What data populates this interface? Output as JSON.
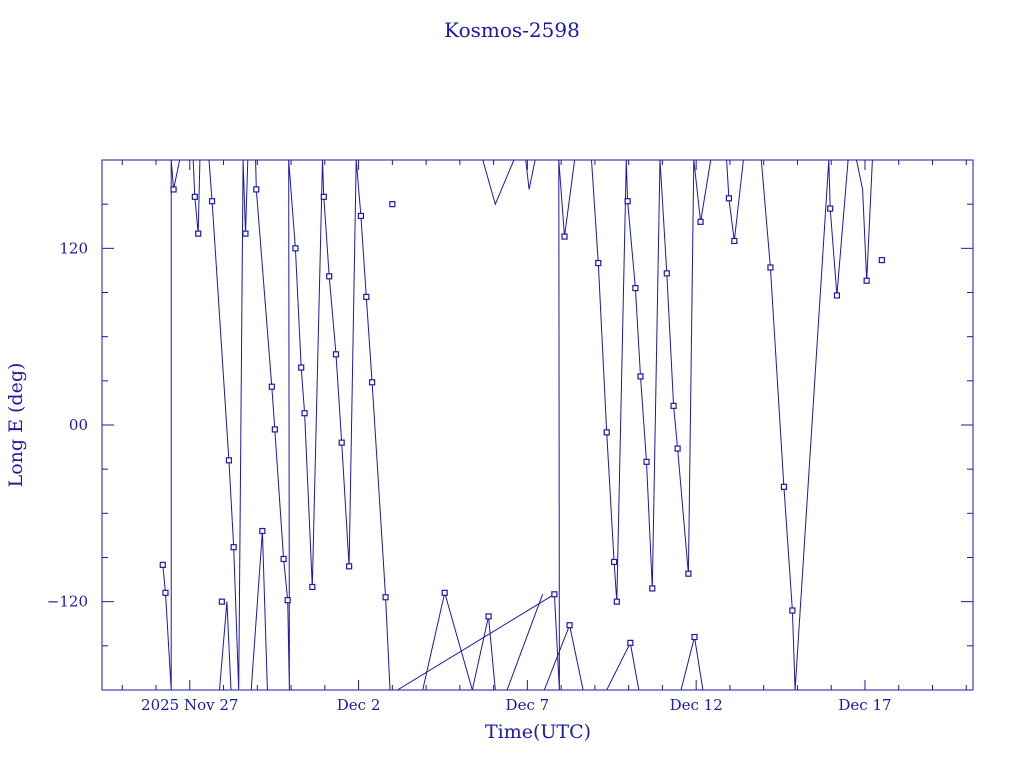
{
  "chart_data": {
    "type": "line",
    "title": "Kosmos-2598",
    "xlabel": "Time(UTC)",
    "ylabel": "Long E (deg)",
    "x_ticks": [
      "2025 Nov 27",
      "Dec  2",
      "Dec  7",
      "Dec 12",
      "Dec 17"
    ],
    "y_ticks": [
      "120",
      "00",
      "−120"
    ],
    "xlim_days_after_nov27": [
      -2.6,
      23.2
    ],
    "ylim": [
      -180,
      180
    ],
    "line_color": "#1a1aa6",
    "series": [
      {
        "points": [
          [
            -0.8,
            -95
          ],
          [
            -0.72,
            -114
          ],
          [
            -0.55,
            -180
          ],
          [
            -0.55,
            180
          ],
          [
            -0.48,
            160
          ],
          [
            -0.3,
            180
          ],
          [
            0.1,
            180
          ],
          [
            0.15,
            155
          ],
          [
            0.25,
            130
          ],
          [
            0.3,
            180
          ],
          [
            0.57,
            180
          ],
          [
            0.66,
            152
          ],
          [
            1.16,
            -24
          ],
          [
            1.3,
            -83
          ],
          [
            1.45,
            -180
          ],
          [
            1.58,
            180
          ],
          [
            1.65,
            130
          ],
          [
            1.72,
            180
          ],
          [
            1.95,
            180
          ],
          [
            1.97,
            160
          ],
          [
            2.43,
            26
          ],
          [
            2.52,
            -3
          ],
          [
            2.78,
            -91
          ],
          [
            2.9,
            -119
          ],
          [
            2.95,
            -180
          ],
          [
            2.93,
            180
          ],
          [
            3.13,
            120
          ],
          [
            3.3,
            39
          ],
          [
            3.4,
            8
          ],
          [
            3.63,
            -110
          ],
          [
            3.93,
            180
          ],
          [
            3.97,
            155
          ],
          [
            4.13,
            101
          ],
          [
            4.33,
            48
          ],
          [
            4.5,
            -12
          ],
          [
            4.72,
            -96
          ],
          [
            4.93,
            180
          ],
          [
            5.07,
            142
          ],
          [
            5.23,
            87
          ],
          [
            5.4,
            29
          ],
          [
            5.8,
            -117
          ],
          [
            5.93,
            -180
          ],
          [
            6.15,
            -180
          ],
          [
            10.8,
            -115
          ],
          [
            10.95,
            -180
          ],
          [
            10.93,
            180
          ],
          [
            11.1,
            128
          ],
          [
            11.4,
            180
          ],
          [
            11.9,
            180
          ],
          [
            12.1,
            110
          ],
          [
            12.35,
            -5
          ],
          [
            12.57,
            -93
          ],
          [
            12.65,
            -120
          ],
          [
            12.93,
            180
          ],
          [
            12.97,
            152
          ],
          [
            13.2,
            93
          ],
          [
            13.35,
            33
          ],
          [
            13.53,
            -25
          ],
          [
            13.7,
            -111
          ],
          [
            13.93,
            180
          ],
          [
            14.13,
            103
          ],
          [
            14.33,
            13
          ],
          [
            14.45,
            -16
          ],
          [
            14.77,
            -101
          ],
          [
            14.93,
            180
          ],
          [
            15.13,
            138
          ],
          [
            15.43,
            180
          ],
          [
            15.9,
            180
          ],
          [
            15.97,
            154
          ],
          [
            16.13,
            125
          ],
          [
            16.4,
            180
          ],
          [
            16.93,
            180
          ],
          [
            17.2,
            107
          ],
          [
            17.6,
            -42
          ],
          [
            17.85,
            -126
          ],
          [
            17.93,
            -180
          ],
          [
            18.93,
            180
          ],
          [
            18.97,
            147
          ],
          [
            19.17,
            88
          ],
          [
            19.5,
            180
          ],
          [
            19.75,
            180
          ],
          [
            19.93,
            160
          ],
          [
            20.05,
            98
          ],
          [
            20.22,
            180
          ],
          [
            20.5,
            180
          ]
        ]
      },
      {
        "points": [
          [
            0.88,
            -180
          ],
          [
            1.1,
            -120
          ],
          [
            1.22,
            -180
          ],
          [
            1.82,
            -180
          ],
          [
            2.15,
            -72
          ],
          [
            2.3,
            -180
          ],
          [
            6.9,
            -180
          ],
          [
            7.55,
            -114
          ],
          [
            8.37,
            -180
          ],
          [
            8.85,
            -130
          ],
          [
            9.05,
            -180
          ],
          [
            10.5,
            -180
          ],
          [
            11.25,
            -136
          ],
          [
            11.65,
            -180
          ],
          [
            12.35,
            -180
          ],
          [
            13.05,
            -148
          ],
          [
            13.3,
            -180
          ],
          [
            14.55,
            -180
          ],
          [
            14.95,
            -144
          ],
          [
            15.2,
            -180
          ]
        ]
      },
      {
        "points": [
          [
            8.28,
            180
          ],
          [
            8.68,
            180
          ],
          [
            9.05,
            150
          ],
          [
            9.6,
            180
          ],
          [
            9.95,
            180
          ],
          [
            10.05,
            160
          ],
          [
            10.23,
            180
          ]
        ]
      },
      {
        "points": [
          [
            9.4,
            -180
          ],
          [
            10.45,
            -115
          ]
        ]
      },
      {
        "points": [
          [
            11.5,
            -180
          ],
          [
            12.0,
            -180
          ]
        ]
      }
    ],
    "markers": [
      [
        -0.8,
        -95
      ],
      [
        -0.72,
        -114
      ],
      [
        -0.48,
        160
      ],
      [
        0.15,
        155
      ],
      [
        0.25,
        130
      ],
      [
        0.66,
        152
      ],
      [
        1.16,
        -24
      ],
      [
        1.3,
        -83
      ],
      [
        1.65,
        130
      ],
      [
        1.97,
        160
      ],
      [
        2.43,
        26
      ],
      [
        2.52,
        -3
      ],
      [
        2.78,
        -91
      ],
      [
        2.9,
        -119
      ],
      [
        3.13,
        120
      ],
      [
        3.3,
        39
      ],
      [
        3.4,
        8
      ],
      [
        3.63,
        -110
      ],
      [
        3.97,
        155
      ],
      [
        4.13,
        101
      ],
      [
        4.33,
        48
      ],
      [
        4.5,
        -12
      ],
      [
        4.72,
        -96
      ],
      [
        5.07,
        142
      ],
      [
        5.23,
        87
      ],
      [
        5.4,
        29
      ],
      [
        5.8,
        -117
      ],
      [
        0.95,
        -120
      ],
      [
        2.15,
        -72
      ],
      [
        7.55,
        -114
      ],
      [
        8.85,
        -130
      ],
      [
        10.8,
        -115
      ],
      [
        11.1,
        128
      ],
      [
        12.1,
        110
      ],
      [
        12.35,
        -5
      ],
      [
        12.57,
        -93
      ],
      [
        12.65,
        -120
      ],
      [
        12.97,
        152
      ],
      [
        13.2,
        93
      ],
      [
        13.35,
        33
      ],
      [
        13.53,
        -25
      ],
      [
        13.7,
        -111
      ],
      [
        14.13,
        103
      ],
      [
        14.33,
        13
      ],
      [
        14.45,
        -16
      ],
      [
        14.77,
        -101
      ],
      [
        15.13,
        138
      ],
      [
        15.97,
        154
      ],
      [
        16.13,
        125
      ],
      [
        17.2,
        107
      ],
      [
        17.6,
        -42
      ],
      [
        17.85,
        -126
      ],
      [
        18.97,
        147
      ],
      [
        19.17,
        88
      ],
      [
        20.05,
        98
      ],
      [
        11.25,
        -136
      ],
      [
        13.05,
        -148
      ],
      [
        14.95,
        -144
      ],
      [
        6.0,
        150
      ],
      [
        20.5,
        112
      ]
    ]
  }
}
